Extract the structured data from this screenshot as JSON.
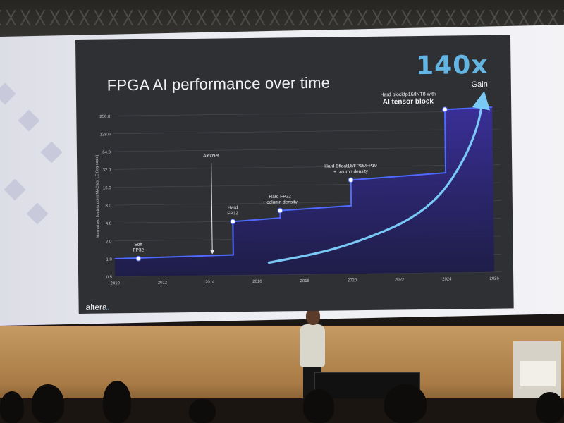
{
  "slide": {
    "title": "FPGA AI performance over time",
    "gain_value": "140x",
    "gain_label": "Gain",
    "brand": "altera",
    "colors": {
      "background": "#2f3034",
      "step_line": "#4f6bff",
      "area": "#3a2f9c",
      "curve": "#7ed2ff",
      "gain": "#63b6e4"
    }
  },
  "chart_data": {
    "type": "area",
    "title": "FPGA AI performance over time",
    "ylabel": "Normalized floating point MACs/s/ LE (log scale)",
    "xlabel": "",
    "y_scale": "log2",
    "xlim": [
      2010,
      2026
    ],
    "ylim": [
      0.5,
      256
    ],
    "xticks": [
      "2010",
      "2012",
      "2014",
      "2016",
      "2018",
      "2020",
      "2022",
      "2024",
      "2026"
    ],
    "yticks": [
      "0.5",
      "1.0",
      "2.0",
      "4.0",
      "8.0",
      "16.0",
      "32.0",
      "64.0",
      "128.0",
      "256.0"
    ],
    "grid": true,
    "series": [
      {
        "style": "step",
        "points": [
          {
            "x": 2010,
            "y": 1.0
          },
          {
            "x": 2015,
            "y": 1.1
          },
          {
            "x": 2015,
            "y": 4.0
          },
          {
            "x": 2017,
            "y": 4.5
          },
          {
            "x": 2017,
            "y": 6.0
          },
          {
            "x": 2020,
            "y": 7.0
          },
          {
            "x": 2020,
            "y": 19.0
          },
          {
            "x": 2024,
            "y": 24.0
          },
          {
            "x": 2024,
            "y": 280.0
          },
          {
            "x": 2026,
            "y": 300.0
          }
        ]
      },
      {
        "style": "curve",
        "points": [
          {
            "x": 2016.5,
            "y": 0.8
          },
          {
            "x": 2019,
            "y": 1.2
          },
          {
            "x": 2021,
            "y": 2.2
          },
          {
            "x": 2022.5,
            "y": 4.0
          },
          {
            "x": 2023.8,
            "y": 10.0
          },
          {
            "x": 2024.8,
            "y": 40.0
          },
          {
            "x": 2025.4,
            "y": 150.0
          },
          {
            "x": 2025.6,
            "y": 400.0
          }
        ]
      }
    ],
    "milestones": [
      {
        "x": 2011,
        "y": 1.0,
        "labels": [
          "Soft",
          "FP32"
        ]
      },
      {
        "x": 2015,
        "y": 4.0,
        "labels": [
          "Hard",
          "FP32"
        ]
      },
      {
        "x": 2017,
        "y": 6.0,
        "labels": [
          "Hard FP32",
          "+ column density"
        ]
      },
      {
        "x": 2020,
        "y": 19.0,
        "labels": [
          "Hard Bfloat16/FP16/FP19",
          "+ column density"
        ]
      },
      {
        "x": 2024,
        "y": 280.0,
        "labels": [
          "Hard blockfp16/INT8 with",
          "AI tensor block"
        ]
      }
    ],
    "annotations": [
      {
        "text": "AlexNet",
        "x": 2014
      }
    ]
  }
}
